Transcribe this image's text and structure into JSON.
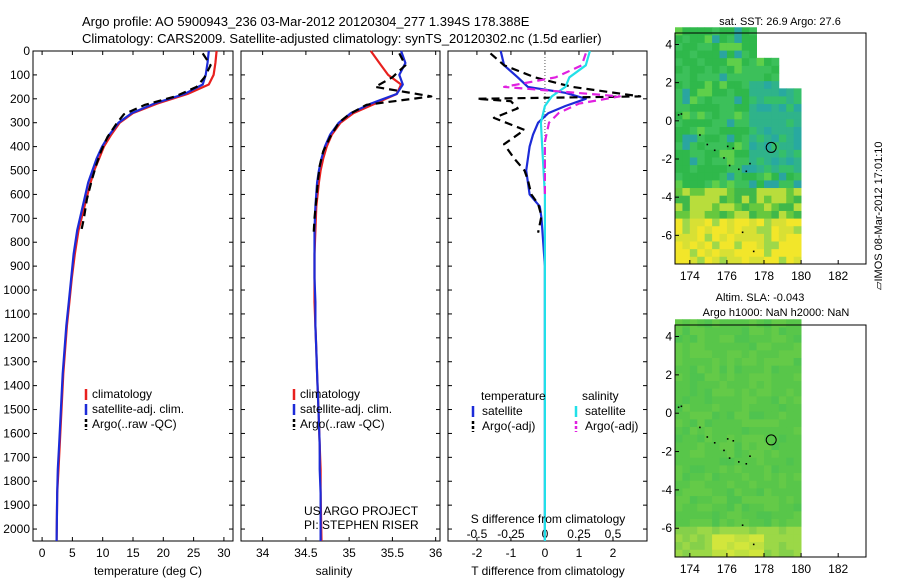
{
  "header": {
    "line1": "Argo profile: AO 5900943_236 03-Mar-2012 20120304_277 1.394S 178.388E",
    "line2": "Climatology: CARS2009. Satellite-adjusted climatology: synTS_20120302.nc (1.5d earlier)"
  },
  "side_label": "IMOS 08-Mar-2012 17:01:10",
  "colors": {
    "climatology": "#e8201e",
    "satellite": "#1c2bd8",
    "argo": "#000000",
    "sat_sal": "#22e0e8",
    "argo_sal": "#e020e0"
  },
  "chart_data": [
    {
      "id": "temperature",
      "type": "line",
      "xlabel": "temperature (deg C)",
      "ylabel": "depth",
      "xlim": [
        -1.5,
        31.5
      ],
      "ylim": [
        2050,
        0
      ],
      "xticks": [
        0,
        5,
        10,
        15,
        20,
        25,
        30
      ],
      "yticks": [
        0,
        100,
        200,
        300,
        400,
        500,
        600,
        700,
        800,
        900,
        1000,
        1100,
        1200,
        1300,
        1400,
        1500,
        1600,
        1700,
        1800,
        1900,
        2000
      ],
      "legend": {
        "position": "bottom-left",
        "entries": [
          "climatology",
          "satellite-adj. clim.",
          "Argo(..raw -QC)"
        ]
      },
      "series": [
        {
          "name": "climatology",
          "color": "#e8201e",
          "style": "solid",
          "x": [
            28.8,
            28.6,
            28.3,
            27.5,
            24,
            19,
            15,
            12.8,
            11.4,
            10.2,
            9.4,
            8.6,
            8.0,
            7.0,
            6.0,
            5.4,
            4.9,
            4.5,
            4.1,
            3.8,
            3.5,
            3.3,
            3.1,
            2.9,
            2.7,
            2.5,
            2.4
          ],
          "y": [
            0,
            50,
            100,
            140,
            180,
            220,
            260,
            300,
            350,
            400,
            450,
            500,
            550,
            650,
            750,
            850,
            950,
            1050,
            1150,
            1250,
            1350,
            1450,
            1550,
            1650,
            1750,
            1850,
            2050
          ]
        },
        {
          "name": "satellite",
          "color": "#1c2bd8",
          "style": "solid",
          "x": [
            27.5,
            27.3,
            27.0,
            26.5,
            23.5,
            18.5,
            14.8,
            12.6,
            11.1,
            9.9,
            9.0,
            8.3,
            7.6,
            6.7,
            5.8,
            5.2,
            4.8,
            4.4,
            4.0,
            3.7,
            3.4,
            3.2,
            3.0,
            2.8,
            2.6,
            2.5,
            2.4
          ],
          "y": [
            0,
            50,
            100,
            140,
            180,
            220,
            260,
            300,
            350,
            400,
            450,
            500,
            550,
            650,
            750,
            850,
            950,
            1050,
            1150,
            1250,
            1350,
            1450,
            1550,
            1650,
            1750,
            1850,
            2050
          ]
        },
        {
          "name": "argo",
          "color": "#000000",
          "style": "dashed",
          "x": [
            26.5,
            27.8,
            26.8,
            25.5,
            22,
            17,
            13.5,
            12.4,
            10.8,
            9.7,
            8.9,
            8.2,
            7.4,
            6.9,
            6.4
          ],
          "y": [
            10,
            60,
            110,
            150,
            190,
            225,
            265,
            300,
            360,
            420,
            480,
            540,
            620,
            700,
            760
          ]
        }
      ]
    },
    {
      "id": "salinity",
      "type": "line",
      "xlabel": "salinity",
      "xlim": [
        33.75,
        36.05
      ],
      "ylim": [
        2050,
        0
      ],
      "xticks": [
        34,
        34.5,
        35,
        35.5,
        36
      ],
      "xticklabels": [
        "34",
        "34.5",
        "35",
        "35.5",
        "36"
      ],
      "legend": {
        "position": "bottom-left",
        "entries": [
          "climatology",
          "satellite-adj. clim.",
          "Argo(..raw -QC)"
        ]
      },
      "annotation": [
        "US ARGO PROJECT",
        "PI: STEPHEN RISER"
      ],
      "series": [
        {
          "name": "climatology",
          "color": "#e8201e",
          "style": "solid",
          "x": [
            35.25,
            35.35,
            35.45,
            35.6,
            35.55,
            35.3,
            35.05,
            34.9,
            34.8,
            34.74,
            34.7,
            34.67,
            34.65,
            34.62,
            34.61,
            34.6,
            34.6,
            34.6,
            34.61,
            34.62,
            34.63,
            34.64,
            34.65,
            34.66,
            34.67,
            34.67,
            34.68
          ],
          "y": [
            0,
            50,
            100,
            140,
            180,
            220,
            260,
            300,
            350,
            400,
            450,
            500,
            550,
            650,
            750,
            850,
            950,
            1050,
            1150,
            1250,
            1350,
            1450,
            1550,
            1650,
            1750,
            1850,
            2050
          ]
        },
        {
          "name": "satellite",
          "color": "#1c2bd8",
          "style": "solid",
          "x": [
            35.6,
            35.65,
            35.58,
            35.62,
            35.55,
            35.25,
            35.02,
            34.88,
            34.78,
            34.72,
            34.68,
            34.65,
            34.63,
            34.61,
            34.6,
            34.6,
            34.6,
            34.61,
            34.61,
            34.62,
            34.63,
            34.64,
            34.65,
            34.66,
            34.66,
            34.67,
            34.67
          ],
          "y": [
            0,
            50,
            100,
            140,
            180,
            220,
            260,
            300,
            350,
            400,
            450,
            500,
            550,
            650,
            750,
            850,
            950,
            1050,
            1150,
            1250,
            1350,
            1450,
            1550,
            1650,
            1750,
            1850,
            2050
          ]
        },
        {
          "name": "argo",
          "color": "#000000",
          "style": "dashed",
          "x": [
            35.58,
            35.65,
            35.5,
            35.3,
            35.95,
            35.2,
            35.0,
            34.88,
            34.78,
            34.7,
            34.66,
            34.64,
            34.62,
            34.6,
            34.59
          ],
          "y": [
            10,
            60,
            110,
            150,
            190,
            225,
            265,
            300,
            360,
            420,
            480,
            540,
            620,
            700,
            760
          ]
        }
      ]
    },
    {
      "id": "differences",
      "type": "line",
      "xlabel": "T difference from climatology",
      "xlabel_top": "S difference from climatology",
      "xlim": [
        -2.85,
        3.0
      ],
      "ylim": [
        2050,
        0
      ],
      "xticks": [
        -2,
        -1,
        0,
        1,
        2
      ],
      "sticks": [
        -0.5,
        -0.25,
        0,
        0.25,
        0.5
      ],
      "sticklabels": [
        "-0.5",
        "-0.25",
        "0",
        "0.25",
        "0.5"
      ],
      "legend": {
        "position": "bottom",
        "temperature_title": "temperature",
        "salinity_title": "salinity",
        "entries": [
          "satellite",
          "Argo(-adj)",
          "satellite",
          "Argo(-adj)"
        ]
      },
      "series": [
        {
          "name": "T satellite",
          "color": "#1c2bd8",
          "style": "solid",
          "x": [
            -1.3,
            -1.2,
            -0.8,
            -0.5,
            0.6,
            1.2,
            0.6,
            0.1,
            -0.2,
            -0.35,
            -0.45,
            -0.55,
            -0.45,
            -0.15,
            -0.1,
            -0.05,
            0,
            0,
            0,
            0,
            0
          ],
          "y": [
            0,
            60,
            110,
            150,
            175,
            200,
            230,
            260,
            300,
            350,
            400,
            500,
            600,
            650,
            700,
            800,
            900,
            1100,
            1400,
            1700,
            2050
          ]
        },
        {
          "name": "T argo",
          "color": "#000000",
          "style": "dashed",
          "x": [
            -1.6,
            -1.2,
            -0.3,
            0.8,
            2.8,
            -2.0,
            -1.0,
            -0.8,
            -1.5,
            -0.6,
            -1.2,
            -0.9,
            -0.6,
            -0.5,
            -0.4,
            -0.2,
            -0.1,
            -0.2
          ],
          "y": [
            10,
            60,
            110,
            150,
            190,
            200,
            210,
            240,
            280,
            330,
            390,
            450,
            500,
            540,
            600,
            640,
            690,
            760
          ]
        },
        {
          "name": "S satellite",
          "color": "#22e0e8",
          "style": "solid",
          "x": [
            0.33,
            0.3,
            0.18,
            0.15,
            0.05,
            0.0,
            -0.03,
            -0.02,
            0,
            0,
            0,
            0,
            0
          ],
          "y": [
            0,
            60,
            110,
            150,
            190,
            230,
            300,
            400,
            600,
            800,
            1200,
            1600,
            2050
          ]
        },
        {
          "name": "S argo",
          "color": "#e020e0",
          "style": "dashed",
          "x": [
            0.3,
            0.27,
            0.08,
            -0.3,
            0.55,
            0.25,
            0.1,
            0.03,
            0,
            0,
            0
          ],
          "y": [
            10,
            60,
            110,
            150,
            190,
            220,
            260,
            300,
            380,
            480,
            600
          ]
        }
      ]
    },
    {
      "id": "sst_map",
      "type": "heatmap",
      "title": "sat. SST: 26.9 Argo: 27.6",
      "xticks": [
        174,
        176,
        178,
        180,
        182
      ],
      "yticks": [
        4,
        2,
        0,
        -2,
        -4,
        -6
      ],
      "xlim": [
        173.2,
        183.5
      ],
      "ylim": [
        -7.5,
        4.6
      ],
      "float_position": [
        178.388,
        -1.394
      ]
    },
    {
      "id": "sla_map",
      "type": "heatmap",
      "title_line1": "Altim. SLA: -0.043",
      "title_line2": "Argo h1000: NaN h2000: NaN",
      "xticks": [
        174,
        176,
        178,
        180,
        182
      ],
      "yticks": [
        4,
        2,
        0,
        -2,
        -4,
        -6
      ],
      "xlim": [
        173.2,
        183.5
      ],
      "ylim": [
        -7.5,
        4.6
      ],
      "float_position": [
        178.388,
        -1.394
      ]
    }
  ]
}
